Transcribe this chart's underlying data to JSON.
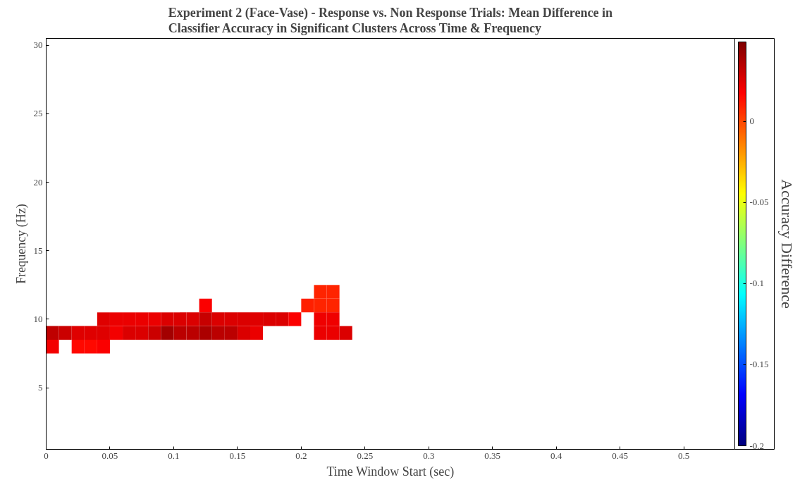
{
  "chart_data": {
    "type": "heatmap",
    "title": "Experiment 2 (Face-Vase) - Response vs. Non Response Trials: Mean Difference in\nClassifier Accuracy in Significant Clusters Across Time & Frequency",
    "xlabel": "Time Window Start (sec)",
    "ylabel": "Frequency (Hz)",
    "clabel": "Accuracy Difference",
    "x": [
      0.005,
      0.015,
      0.025,
      0.035,
      0.045,
      0.055,
      0.065,
      0.075,
      0.085,
      0.095,
      0.105,
      0.115,
      0.125,
      0.135,
      0.145,
      0.155,
      0.165,
      0.175,
      0.185,
      0.195,
      0.205,
      0.215,
      0.225,
      0.235
    ],
    "y": [
      12,
      11,
      10,
      9,
      8
    ],
    "cells": [
      [
        null,
        null,
        null,
        null,
        null,
        null,
        null,
        null,
        null,
        null,
        null,
        null,
        null,
        null,
        null,
        null,
        null,
        null,
        null,
        null,
        null,
        0.009,
        0.009,
        null
      ],
      [
        null,
        null,
        null,
        null,
        null,
        null,
        null,
        null,
        null,
        null,
        null,
        null,
        0.018,
        null,
        null,
        null,
        null,
        null,
        null,
        null,
        0.01,
        0.009,
        0.009,
        null
      ],
      [
        null,
        null,
        null,
        null,
        0.025,
        0.022,
        0.022,
        0.022,
        0.022,
        0.026,
        0.026,
        0.026,
        0.031,
        0.026,
        0.026,
        0.026,
        0.025,
        0.026,
        0.026,
        0.018,
        null,
        0.021,
        0.021,
        null
      ],
      [
        0.033,
        0.03,
        0.025,
        0.025,
        0.025,
        0.02,
        0.026,
        0.026,
        0.03,
        0.04,
        0.034,
        0.034,
        0.038,
        0.034,
        0.034,
        0.026,
        0.022,
        null,
        null,
        null,
        null,
        0.022,
        0.022,
        0.026
      ],
      [
        0.02,
        null,
        0.015,
        0.015,
        0.018,
        null,
        null,
        null,
        null,
        null,
        null,
        null,
        null,
        null,
        null,
        null,
        null,
        null,
        null,
        null,
        null,
        null,
        null,
        null
      ]
    ],
    "xlim": [
      0,
      0.54
    ],
    "ylim": [
      0.5,
      30.5
    ],
    "xticks": [
      0,
      0.05,
      0.1,
      0.15,
      0.2,
      0.25,
      0.3,
      0.35,
      0.4,
      0.45,
      0.5
    ],
    "yticks": [
      5,
      10,
      15,
      20,
      25,
      30
    ],
    "clim": [
      -0.2,
      0.049
    ],
    "cticks": [
      -0.2,
      -0.15,
      -0.1,
      -0.05,
      0
    ],
    "grid": false
  }
}
